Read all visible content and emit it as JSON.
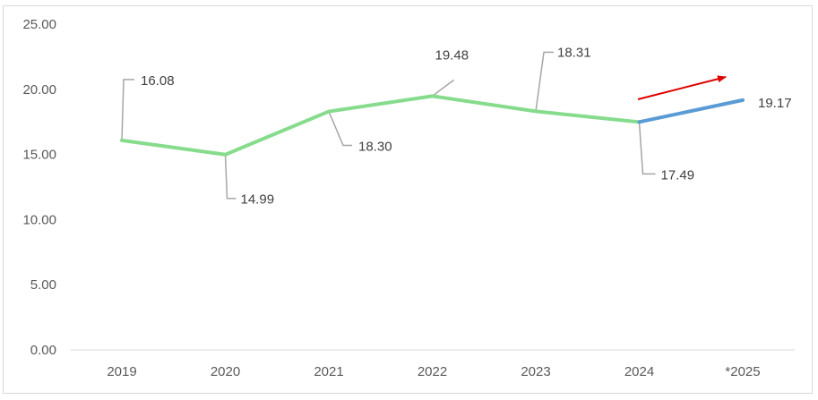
{
  "chart_data": {
    "type": "line",
    "categories": [
      "2019",
      "2020",
      "2021",
      "2022",
      "2023",
      "2024",
      "*2025"
    ],
    "series": [
      {
        "values": [
          16.08,
          14.99,
          18.3,
          19.48,
          18.31,
          17.49,
          19.17
        ]
      }
    ],
    "data_labels": [
      "16.08",
      "14.99",
      "18.30",
      "19.48",
      "18.31",
      "17.49",
      "19.17"
    ],
    "y_tick_labels": [
      "0.00",
      "5.00",
      "10.00",
      "15.00",
      "20.00",
      "25.00"
    ],
    "ylim": [
      0,
      25
    ],
    "title": "",
    "xlabel": "",
    "ylabel": "",
    "grid": false,
    "legend": "none",
    "annotations": [
      "red upward arrow indicating increase from 2024 to *2025"
    ],
    "colors": {
      "actual_line": "#86dc8c",
      "forecast_line": "#5b9bd5",
      "arrow": "#e00000",
      "leader_line": "#a6a6a6",
      "axis": "#d9d9d9",
      "text": "#595959"
    }
  }
}
